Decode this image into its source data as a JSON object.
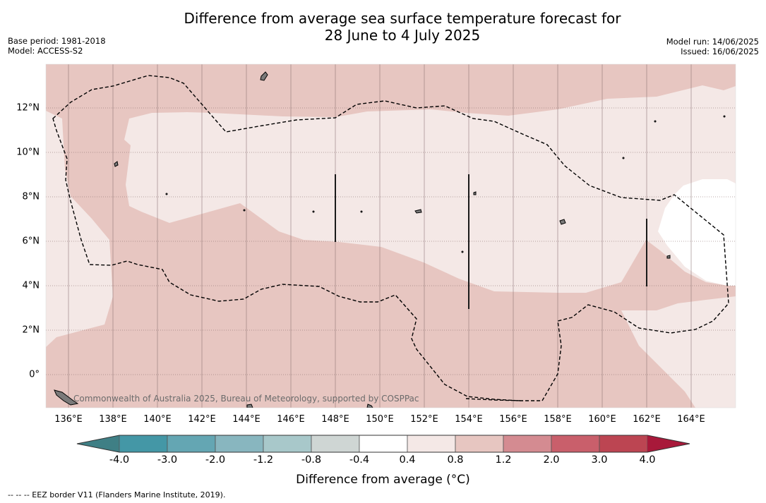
{
  "title": {
    "line1": "Difference from average sea surface temperature forecast for",
    "line2": "28 June to 4 July 2025"
  },
  "meta_left": {
    "base_period": "Base period: 1981-2018",
    "model": "Model: ACCESS-S2"
  },
  "meta_right": {
    "model_run": "Model run: 14/06/2025",
    "issued": "Issued: 16/06/2025"
  },
  "map": {
    "x_ticks": [
      "136°E",
      "138°E",
      "140°E",
      "142°E",
      "144°E",
      "146°E",
      "148°E",
      "150°E",
      "152°E",
      "154°E",
      "156°E",
      "158°E",
      "160°E",
      "162°E",
      "164°E"
    ],
    "y_ticks": [
      "12°N",
      "10°N",
      "8°N",
      "6°N",
      "4°N",
      "2°N",
      "0°"
    ],
    "credit": "Commonwealth of Australia 2025, Bureau of Meteorology, supported by COSPPac",
    "colors": {
      "band_0.8_1.2": "#e7c6c1",
      "band_0.4_0.8": "#f4e8e6",
      "band_-0.4_0.4": "#ffffff"
    }
  },
  "colorbar": {
    "title": "Difference from average (°C)",
    "labels": [
      "-4.0",
      "-3.0",
      "-2.0",
      "-1.2",
      "-0.8",
      "-0.4",
      "0.4",
      "0.8",
      "1.2",
      "2.0",
      "3.0",
      "4.0"
    ],
    "colors": [
      "#4497a6",
      "#64a6b3",
      "#88b6bf",
      "#a8c8ca",
      "#cfd6d4",
      "#ffffff",
      "#f4e8e6",
      "#e7c6c1",
      "#d48b91",
      "#c95f6b",
      "#bc4552"
    ],
    "under_color": "#3f7f85",
    "over_color": "#a8193a"
  },
  "footnote": "--  --  -- EEZ border V11 (Flanders Marine Institute, 2019)."
}
